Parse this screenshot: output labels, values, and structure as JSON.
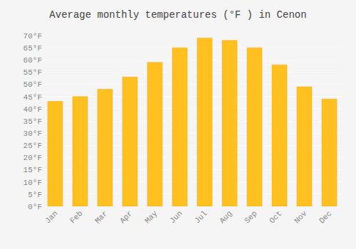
{
  "chart_data": {
    "type": "bar",
    "title": "Average monthly temperatures (°F ) in Cenon",
    "categories": [
      "Jan",
      "Feb",
      "Mar",
      "Apr",
      "May",
      "Jun",
      "Jul",
      "Aug",
      "Sep",
      "Oct",
      "Nov",
      "Dec"
    ],
    "values": [
      43,
      45,
      48,
      53,
      59,
      65,
      69,
      68,
      65,
      58,
      49,
      44
    ],
    "color": "#FFC020",
    "ylim": [
      0,
      70
    ],
    "yticks": [
      {
        "value": 0,
        "label": "0°F"
      },
      {
        "value": 5,
        "label": "5°F"
      },
      {
        "value": 10,
        "label": "10°F"
      },
      {
        "value": 15,
        "label": "15°F"
      },
      {
        "value": 20,
        "label": "20°F"
      },
      {
        "value": 25,
        "label": "25°F"
      },
      {
        "value": 30,
        "label": "30°F"
      },
      {
        "value": 35,
        "label": "35°F"
      },
      {
        "value": 40,
        "label": "40°F"
      },
      {
        "value": 45,
        "label": "45°F"
      },
      {
        "value": 50,
        "label": "50°F"
      },
      {
        "value": 55,
        "label": "55°F"
      },
      {
        "value": 60,
        "label": "60°F"
      },
      {
        "value": 65,
        "label": "65°F"
      },
      {
        "value": 70,
        "label": "70°F"
      }
    ],
    "grid": true
  }
}
